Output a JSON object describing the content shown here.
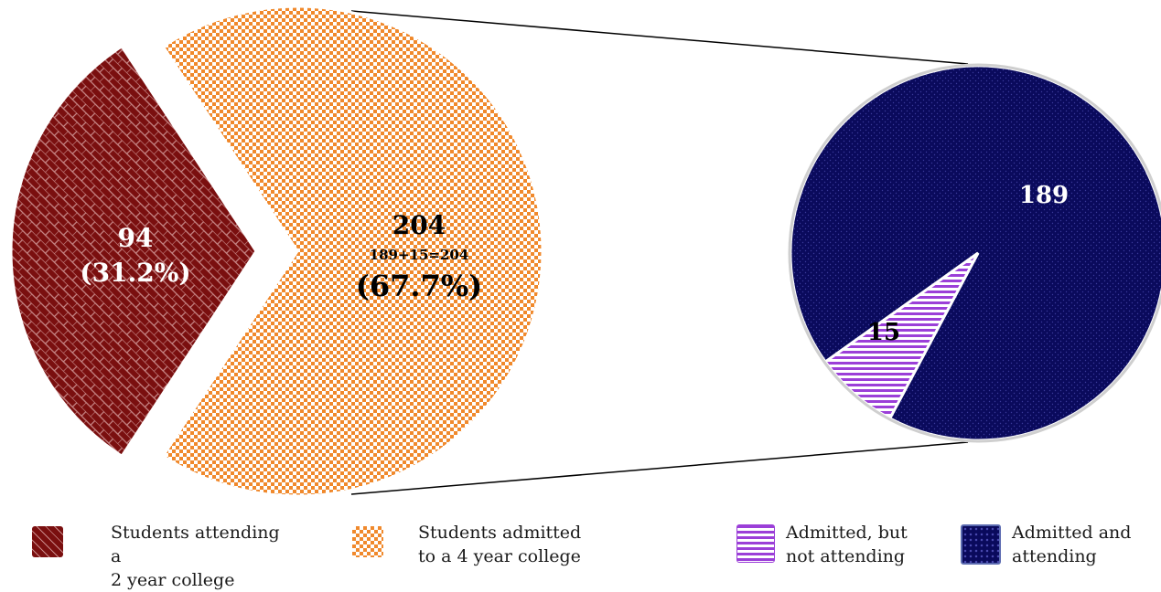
{
  "chart_data": [
    {
      "type": "pie",
      "slices": [
        {
          "value": 94,
          "label_value": "94",
          "label_pct": "(31.2%)",
          "color": "#7a0f0f"
        },
        {
          "value": 204,
          "label_value": "204",
          "label_sum": "189+15=204",
          "label_pct": "(67.7%)",
          "color": "#f0892c"
        }
      ]
    },
    {
      "type": "pie",
      "slices": [
        {
          "value": 189,
          "label_value": "189",
          "color": "#0a0a5c"
        },
        {
          "value": 15,
          "label_value": "15",
          "color": "#9b3fd8"
        }
      ]
    }
  ],
  "legend": [
    {
      "line1": "Students attending a",
      "line2": "2 year college",
      "color": "#7a0f0f"
    },
    {
      "line1": "Students admitted",
      "line2": "to a 4 year college",
      "color": "#f0892c"
    },
    {
      "line1": "Admitted, but",
      "line2": "not attending",
      "color": "#9b3fd8"
    },
    {
      "line1": "Admitted and",
      "line2": "attending",
      "color": "#0a0a5c"
    }
  ]
}
